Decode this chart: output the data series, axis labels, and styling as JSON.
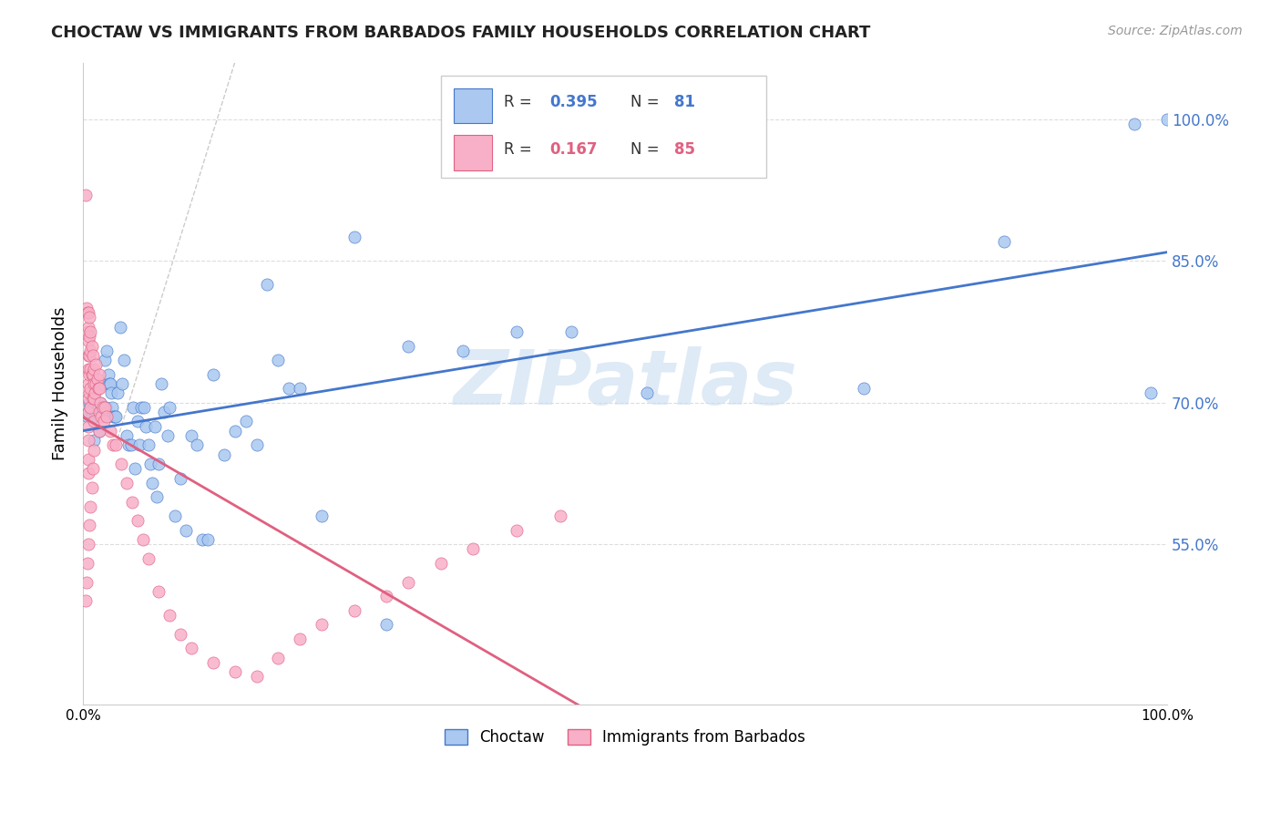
{
  "title": "CHOCTAW VS IMMIGRANTS FROM BARBADOS FAMILY HOUSEHOLDS CORRELATION CHART",
  "source": "Source: ZipAtlas.com",
  "ylabel": "Family Households",
  "choctaw_color": "#aac8f0",
  "barbados_color": "#f8b0c8",
  "trendline1_color": "#4477cc",
  "trendline2_color": "#e06080",
  "ref_line_color": "#cccccc",
  "watermark": "ZIPatlas",
  "watermark_color": "#c8ddf0",
  "legend_label1": "Choctaw",
  "legend_label2": "Immigrants from Barbados",
  "xlim": [
    0.0,
    1.0
  ],
  "ylim": [
    0.38,
    1.06
  ],
  "y_ticks": [
    0.55,
    0.7,
    0.85,
    1.0
  ],
  "x_ticks": [
    0.0,
    1.0
  ],
  "x_tick_labels": [
    "0.0%",
    "100.0%"
  ],
  "choctaw_x": [
    0.004,
    0.005,
    0.006,
    0.007,
    0.008,
    0.009,
    0.01,
    0.01,
    0.011,
    0.012,
    0.013,
    0.014,
    0.015,
    0.016,
    0.017,
    0.018,
    0.019,
    0.02,
    0.021,
    0.022,
    0.023,
    0.024,
    0.025,
    0.026,
    0.027,
    0.028,
    0.029,
    0.03,
    0.032,
    0.034,
    0.036,
    0.038,
    0.04,
    0.042,
    0.044,
    0.046,
    0.048,
    0.05,
    0.052,
    0.054,
    0.056,
    0.058,
    0.06,
    0.062,
    0.064,
    0.066,
    0.068,
    0.07,
    0.072,
    0.075,
    0.078,
    0.08,
    0.085,
    0.09,
    0.095,
    0.1,
    0.105,
    0.11,
    0.115,
    0.12,
    0.13,
    0.14,
    0.15,
    0.16,
    0.17,
    0.18,
    0.19,
    0.2,
    0.22,
    0.25,
    0.28,
    0.3,
    0.35,
    0.4,
    0.45,
    0.52,
    0.72,
    0.85,
    0.97,
    0.985,
    1.0
  ],
  "choctaw_y": [
    0.685,
    0.69,
    0.7,
    0.695,
    0.685,
    0.71,
    0.695,
    0.66,
    0.685,
    0.69,
    0.715,
    0.695,
    0.67,
    0.7,
    0.695,
    0.72,
    0.695,
    0.745,
    0.695,
    0.755,
    0.73,
    0.72,
    0.72,
    0.71,
    0.695,
    0.685,
    0.685,
    0.685,
    0.71,
    0.78,
    0.72,
    0.745,
    0.665,
    0.655,
    0.655,
    0.695,
    0.63,
    0.68,
    0.655,
    0.695,
    0.695,
    0.675,
    0.655,
    0.635,
    0.615,
    0.675,
    0.6,
    0.635,
    0.72,
    0.69,
    0.665,
    0.695,
    0.58,
    0.62,
    0.565,
    0.665,
    0.655,
    0.555,
    0.555,
    0.73,
    0.645,
    0.67,
    0.68,
    0.655,
    0.825,
    0.745,
    0.715,
    0.715,
    0.58,
    0.875,
    0.465,
    0.76,
    0.755,
    0.775,
    0.775,
    0.71,
    0.715,
    0.87,
    0.995,
    0.71,
    1.0
  ],
  "barbados_x": [
    0.002,
    0.003,
    0.004,
    0.004,
    0.005,
    0.005,
    0.005,
    0.005,
    0.005,
    0.005,
    0.005,
    0.005,
    0.005,
    0.005,
    0.005,
    0.005,
    0.006,
    0.006,
    0.006,
    0.006,
    0.006,
    0.007,
    0.007,
    0.007,
    0.007,
    0.007,
    0.008,
    0.008,
    0.009,
    0.009,
    0.009,
    0.01,
    0.01,
    0.01,
    0.01,
    0.011,
    0.012,
    0.012,
    0.013,
    0.014,
    0.015,
    0.015,
    0.015,
    0.016,
    0.017,
    0.018,
    0.019,
    0.02,
    0.022,
    0.025,
    0.028,
    0.03,
    0.035,
    0.04,
    0.045,
    0.05,
    0.055,
    0.06,
    0.07,
    0.08,
    0.09,
    0.1,
    0.12,
    0.14,
    0.16,
    0.18,
    0.2,
    0.22,
    0.25,
    0.28,
    0.3,
    0.33,
    0.36,
    0.4,
    0.44,
    0.002,
    0.003,
    0.004,
    0.005,
    0.006,
    0.007,
    0.008,
    0.009,
    0.01,
    0.015
  ],
  "barbados_y": [
    0.92,
    0.8,
    0.795,
    0.775,
    0.795,
    0.78,
    0.765,
    0.75,
    0.735,
    0.72,
    0.705,
    0.69,
    0.675,
    0.66,
    0.64,
    0.625,
    0.79,
    0.77,
    0.75,
    0.73,
    0.71,
    0.775,
    0.755,
    0.735,
    0.715,
    0.695,
    0.76,
    0.73,
    0.75,
    0.73,
    0.705,
    0.735,
    0.72,
    0.705,
    0.68,
    0.71,
    0.74,
    0.72,
    0.725,
    0.715,
    0.73,
    0.715,
    0.69,
    0.7,
    0.685,
    0.695,
    0.68,
    0.695,
    0.685,
    0.67,
    0.655,
    0.655,
    0.635,
    0.615,
    0.595,
    0.575,
    0.555,
    0.535,
    0.5,
    0.475,
    0.455,
    0.44,
    0.425,
    0.415,
    0.41,
    0.43,
    0.45,
    0.465,
    0.48,
    0.495,
    0.51,
    0.53,
    0.545,
    0.565,
    0.58,
    0.49,
    0.51,
    0.53,
    0.55,
    0.57,
    0.59,
    0.61,
    0.63,
    0.65,
    0.67
  ]
}
